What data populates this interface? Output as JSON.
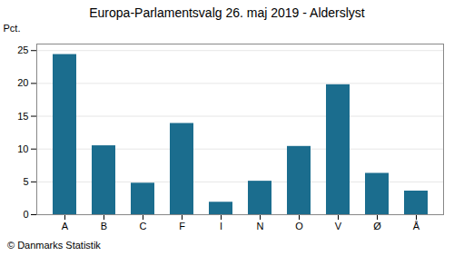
{
  "chart_data": {
    "type": "bar",
    "title": "Europa-Parlamentsvalg 26. maj 2019 - Alderslyst",
    "caption": "© Danmarks Statistik",
    "ylabel": "Pct.",
    "categories": [
      "A",
      "B",
      "C",
      "F",
      "I",
      "N",
      "O",
      "V",
      "Ø",
      "Å"
    ],
    "values": [
      24.4,
      10.5,
      4.8,
      13.9,
      1.9,
      5.1,
      10.4,
      19.8,
      6.3,
      3.6
    ],
    "color": "#1b6d8e",
    "ylim": [
      0,
      26
    ],
    "yticks": [
      0,
      5,
      10,
      15,
      20,
      25
    ],
    "grid": true
  }
}
